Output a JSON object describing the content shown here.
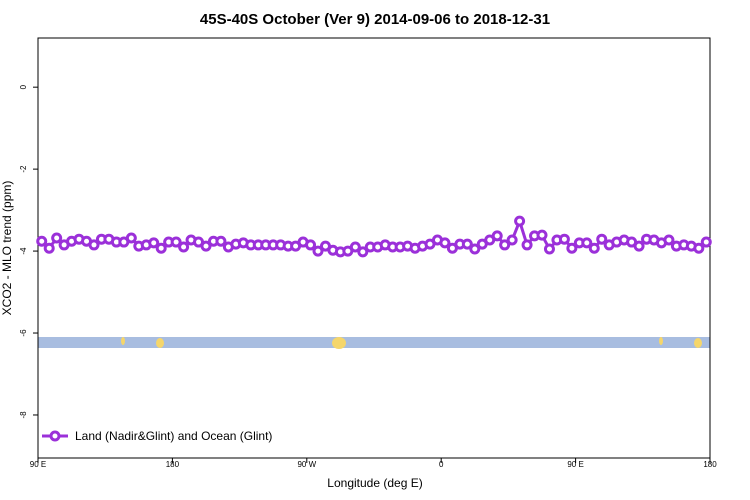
{
  "chart_data": {
    "type": "line",
    "title": "45S-40S October (Ver 9)   2014-09-06 to 2018-12-31",
    "x_label": "Longitude (deg E)",
    "y_label": "XCO2 - MLO trend (ppm)",
    "x": [
      92.5,
      97.5,
      102.5,
      107.5,
      112.5,
      117.5,
      122.5,
      127.5,
      132.5,
      137.5,
      142.5,
      147.5,
      152.5,
      157.5,
      162.5,
      167.5,
      172.5,
      177.5,
      182.5,
      187.5,
      192.5,
      197.5,
      202.5,
      207.5,
      212.5,
      217.5,
      222.5,
      227.5,
      232.5,
      237.5,
      242.5,
      247.5,
      252.5,
      257.5,
      262.5,
      267.5,
      272.5,
      277.5,
      282.5,
      287.5,
      292.5,
      297.5,
      302.5,
      307.5,
      312.5,
      317.5,
      322.5,
      327.5,
      332.5,
      337.5,
      342.5,
      347.5,
      352.5,
      357.5,
      362.5,
      367.5,
      372.5,
      377.5,
      382.5,
      387.5,
      392.5,
      397.5,
      402.5,
      407.5,
      412.5,
      417.5,
      422.5,
      427.5,
      432.5,
      437.5,
      442.5,
      447.5,
      452.5,
      457.5,
      462.5,
      467.5,
      472.5,
      477.5,
      482.5,
      487.5,
      492.5,
      497.5,
      502.5,
      507.5,
      512.5,
      517.5,
      522.5,
      527.5,
      532.5,
      537.5
    ],
    "series": [
      {
        "name": "Land (Nadir&Glint) and Ocean (Glint)",
        "color": "#9b30d9",
        "values": [
          -3.76,
          -3.93,
          -3.68,
          -3.85,
          -3.76,
          -3.71,
          -3.76,
          -3.85,
          -3.71,
          -3.71,
          -3.78,
          -3.78,
          -3.68,
          -3.88,
          -3.85,
          -3.8,
          -3.93,
          -3.78,
          -3.78,
          -3.9,
          -3.73,
          -3.78,
          -3.88,
          -3.76,
          -3.76,
          -3.9,
          -3.83,
          -3.8,
          -3.85,
          -3.85,
          -3.85,
          -3.85,
          -3.85,
          -3.88,
          -3.88,
          -3.78,
          -3.85,
          -4.0,
          -3.88,
          -3.98,
          -4.02,
          -4.0,
          -3.9,
          -4.02,
          -3.9,
          -3.9,
          -3.85,
          -3.9,
          -3.9,
          -3.88,
          -3.93,
          -3.88,
          -3.83,
          -3.73,
          -3.8,
          -3.93,
          -3.83,
          -3.83,
          -3.95,
          -3.83,
          -3.73,
          -3.63,
          -3.85,
          -3.73,
          -3.27,
          -3.85,
          -3.63,
          -3.61,
          -3.95,
          -3.73,
          -3.71,
          -3.93,
          -3.8,
          -3.8,
          -3.93,
          -3.71,
          -3.85,
          -3.78,
          -3.73,
          -3.78,
          -3.88,
          -3.71,
          -3.73,
          -3.8,
          -3.73,
          -3.88,
          -3.85,
          -3.88,
          -3.93,
          -3.78
        ]
      }
    ],
    "xlim": [
      90,
      540
    ],
    "xticks": [
      {
        "value": 90,
        "label": "90 E"
      },
      180,
      {
        "value": 270,
        "label": "90 W"
      },
      {
        "value": 360,
        "label": "0"
      },
      {
        "value": 450,
        "label": "90 E"
      },
      {
        "value": 540,
        "label": "180"
      }
    ],
    "ylim": [
      -9.05,
      1.2
    ],
    "yticks": [
      0,
      -2,
      -4,
      -6,
      -8
    ],
    "legend": "bottom-left"
  }
}
